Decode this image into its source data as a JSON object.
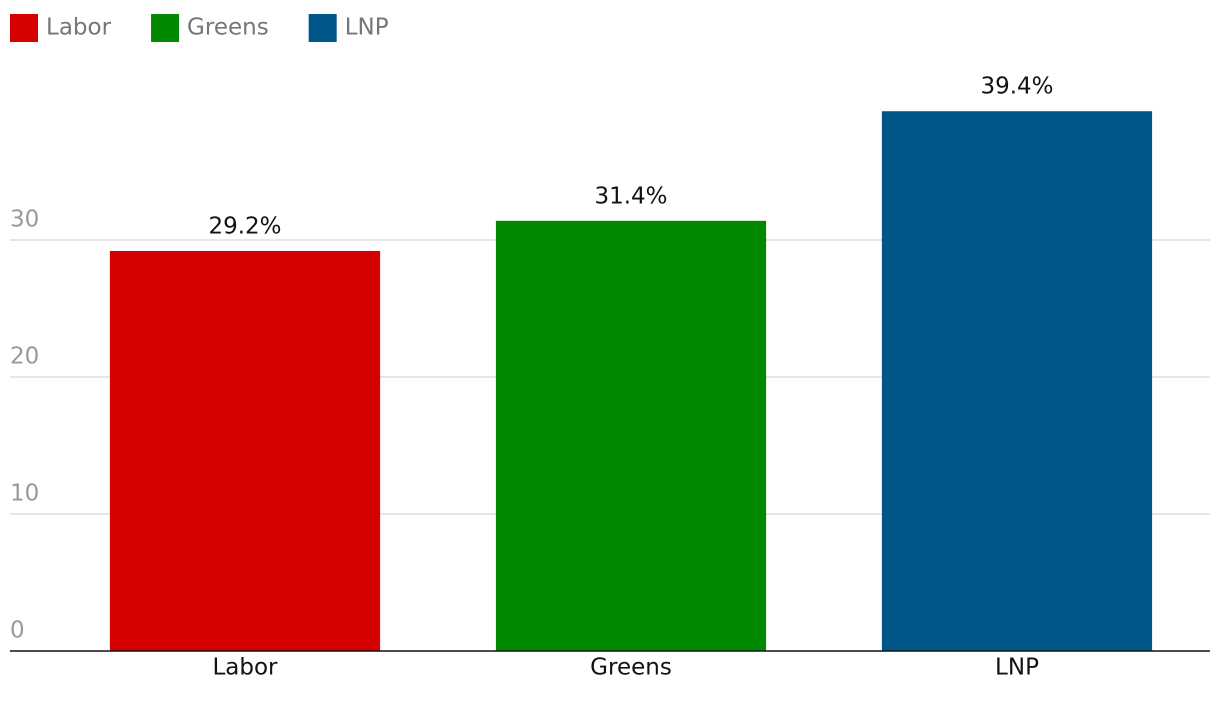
{
  "chart_data": {
    "type": "bar",
    "categories": [
      "Labor",
      "Greens",
      "LNP"
    ],
    "values": [
      29.2,
      31.4,
      39.4
    ],
    "value_labels": [
      "29.2%",
      "31.4%",
      "39.4%"
    ],
    "colors": [
      "#d50000",
      "#008800",
      "#005689"
    ],
    "ylim": [
      0,
      40
    ],
    "yticks": [
      0,
      10,
      20,
      30
    ],
    "grid": true,
    "legend": "top-left"
  }
}
